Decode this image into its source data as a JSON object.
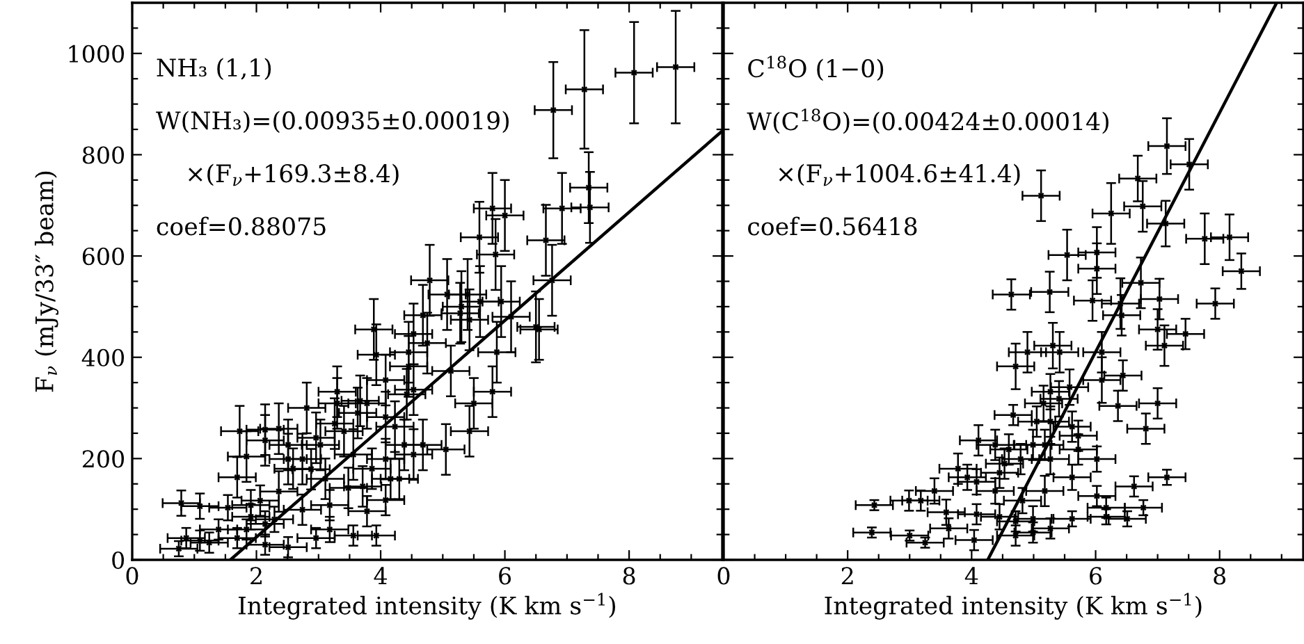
{
  "chart_data": [
    {
      "type": "scatter",
      "ylabel": "F$_{ν}$ (mJy/33″ beam)",
      "xlabel": "Integrated intensity (K km s$^{−1}$)",
      "xlim": [
        0,
        9.5
      ],
      "ylim": [
        0,
        1100
      ],
      "xticks": [
        0,
        {
          "value": 0.5,
          "label": null
        },
        {
          "value": 1,
          "label": null
        },
        {
          "value": 1.5,
          "label": null
        },
        2,
        {
          "value": 2.5,
          "label": null
        },
        {
          "value": 3,
          "label": null
        },
        {
          "value": 3.5,
          "label": null
        },
        4,
        {
          "value": 4.5,
          "label": null
        },
        {
          "value": 5,
          "label": null
        },
        {
          "value": 5.5,
          "label": null
        },
        6,
        {
          "value": 6.5,
          "label": null
        },
        {
          "value": 7,
          "label": null
        },
        {
          "value": 7.5,
          "label": null
        },
        8,
        {
          "value": 8.5,
          "label": null
        },
        {
          "value": 9,
          "label": null
        }
      ],
      "yticks": [
        0,
        {
          "value": 50,
          "label": null
        },
        {
          "value": 100,
          "label": null
        },
        {
          "value": 150,
          "label": null
        },
        200,
        {
          "value": 250,
          "label": null
        },
        {
          "value": 300,
          "label": null
        },
        {
          "value": 350,
          "label": null
        },
        400,
        {
          "value": 450,
          "label": null
        },
        {
          "value": 500,
          "label": null
        },
        {
          "value": 550,
          "label": null
        },
        600,
        {
          "value": 650,
          "label": null
        },
        {
          "value": 700,
          "label": null
        },
        {
          "value": 750,
          "label": null
        },
        800,
        {
          "value": 850,
          "label": null
        },
        {
          "value": 900,
          "label": null
        },
        {
          "value": 950,
          "label": null
        },
        1000,
        {
          "value": 1050,
          "label": null
        }
      ],
      "grid": false,
      "annotations": [
        "NH₃ (1,1)",
        "W(NH₃)=(0.00935±0.00019)",
        "×(F$_{ν}$+169.3±8.4)",
        "coef=0.88075"
      ],
      "series": [
        {
          "type": "scatter",
          "marker": "cross",
          "color": "#000000",
          "x": [
            6.78,
            7.28,
            8.08,
            8.75,
            7.35,
            6.92,
            7.37,
            6.66,
            6.76,
            5.8,
            6.0,
            5.59,
            5.85,
            4.79,
            5.07,
            5.4,
            5.94,
            6.5,
            6.1,
            5.3,
            5.6,
            3.89,
            6.55,
            3.93,
            3.3,
            3.3,
            2.36,
            1.73,
            2.14,
            4.42,
            4.75,
            5.13,
            5.8,
            5.5,
            5.87,
            5.05,
            5.43,
            4.68,
            4.23,
            3.67,
            3.56,
            2.74,
            2.51,
            1.84,
            1.69,
            0.79,
            1.09,
            1.54,
            1.91,
            2.14,
            0.87,
            1.24,
            0.75,
            1.69,
            2.14,
            2.51,
            2.96,
            3.56,
            3.93,
            3.18,
            3.78,
            4.08,
            4.16,
            4.3,
            3.48,
            3.11,
            2.88,
            2.59,
            2.36,
            2.06,
            1.91,
            2.74,
            3.18,
            3.71,
            3.86,
            4.08,
            4.38,
            4.53,
            2.96,
            3.26,
            3.63,
            3.78,
            4.08,
            4.45,
            4.53,
            4.68,
            5.28,
            5.43,
            4.45,
            4.08,
            3.41,
            3.03,
            2.51,
            2.14,
            2.81,
            4.53,
            1.39,
            1.84,
            2.29,
            1.09
          ],
          "values": [
            888,
            929,
            962,
            973,
            735,
            694,
            696,
            631,
            552,
            694,
            680,
            637,
            603,
            552,
            524,
            524,
            510,
            460,
            480,
            500,
            510,
            455,
            455,
            405,
            332,
            309,
            259,
            254,
            257,
            327,
            428,
            373,
            332,
            309,
            410,
            218,
            254,
            227,
            263,
            314,
            208,
            199,
            199,
            204,
            163,
            112,
            106,
            103,
            85,
            71,
            43,
            34,
            22,
            43,
            30,
            25,
            43,
            48,
            48,
            60,
            96,
            118,
            160,
            160,
            142,
            160,
            179,
            180,
            135,
            117,
            108,
            99,
            108,
            145,
            180,
            199,
            227,
            208,
            241,
            269,
            290,
            309,
            355,
            382,
            446,
            483,
            487,
            474,
            410,
            282,
            254,
            227,
            227,
            236,
            300,
            336,
            60,
            60,
            80,
            38
          ],
          "errors": [
            95,
            117,
            100,
            111,
            70,
            70,
            70,
            70,
            70,
            70,
            70,
            70,
            70,
            70,
            70,
            70,
            70,
            70,
            70,
            70,
            70,
            60,
            60,
            60,
            50,
            50,
            50,
            50,
            50,
            50,
            60,
            50,
            50,
            50,
            60,
            50,
            50,
            50,
            50,
            50,
            50,
            50,
            50,
            50,
            40,
            25,
            25,
            25,
            25,
            25,
            20,
            20,
            15,
            20,
            20,
            20,
            20,
            20,
            20,
            25,
            30,
            30,
            40,
            40,
            40,
            40,
            40,
            40,
            40,
            30,
            30,
            30,
            30,
            40,
            40,
            40,
            50,
            50,
            50,
            50,
            50,
            50,
            50,
            60,
            60,
            60,
            60,
            60,
            60,
            50,
            50,
            50,
            50,
            50,
            50,
            50,
            20,
            20,
            25,
            20
          ],
          "xerrors": [
            0.3,
            0.3,
            0.3,
            0.3,
            0.3,
            0.3,
            0.3,
            0.3,
            0.3,
            0.3,
            0.3,
            0.3,
            0.3,
            0.3,
            0.3,
            0.3,
            0.3,
            0.3,
            0.3,
            0.3,
            0.3,
            0.3,
            0.3,
            0.3,
            0.3,
            0.3,
            0.3,
            0.3,
            0.3,
            0.3,
            0.3,
            0.3,
            0.3,
            0.3,
            0.3,
            0.3,
            0.3,
            0.3,
            0.3,
            0.3,
            0.3,
            0.3,
            0.3,
            0.3,
            0.3,
            0.3,
            0.3,
            0.3,
            0.3,
            0.3,
            0.3,
            0.3,
            0.3,
            0.3,
            0.3,
            0.3,
            0.3,
            0.3,
            0.3,
            0.3,
            0.3,
            0.3,
            0.3,
            0.3,
            0.3,
            0.3,
            0.3,
            0.3,
            0.3,
            0.3,
            0.3,
            0.3,
            0.3,
            0.3,
            0.3,
            0.3,
            0.3,
            0.3,
            0.3,
            0.3,
            0.3,
            0.3,
            0.3,
            0.3,
            0.3,
            0.3,
            0.3,
            0.3,
            0.3,
            0.3,
            0.3,
            0.3,
            0.3,
            0.3,
            0.3,
            0.3,
            0.3,
            0.3,
            0.3,
            0.3
          ]
        },
        {
          "type": "line",
          "color": "#000000",
          "x": [
            1.58,
            9.5
          ],
          "values": [
            0,
            847
          ]
        }
      ]
    },
    {
      "type": "scatter",
      "xlabel": "Integrated intensity (K km s$^{−1}$)",
      "xlim": [
        0,
        9.35
      ],
      "ylim": [
        0,
        1100
      ],
      "tick_labels": "x",
      "xticks": [
        0,
        {
          "value": 0.5,
          "label": null
        },
        {
          "value": 1,
          "label": null
        },
        {
          "value": 1.5,
          "label": null
        },
        2,
        {
          "value": 2.5,
          "label": null
        },
        {
          "value": 3,
          "label": null
        },
        {
          "value": 3.5,
          "label": null
        },
        4,
        {
          "value": 4.5,
          "label": null
        },
        {
          "value": 5,
          "label": null
        },
        {
          "value": 5.5,
          "label": null
        },
        6,
        {
          "value": 6.5,
          "label": null
        },
        {
          "value": 7,
          "label": null
        },
        {
          "value": 7.5,
          "label": null
        },
        8,
        {
          "value": 8.5,
          "label": null
        },
        {
          "value": 9,
          "label": null
        }
      ],
      "yticks": [
        0,
        {
          "value": 50,
          "label": null
        },
        {
          "value": 100,
          "label": null
        },
        {
          "value": 150,
          "label": null
        },
        200,
        {
          "value": 250,
          "label": null
        },
        {
          "value": 300,
          "label": null
        },
        {
          "value": 350,
          "label": null
        },
        400,
        {
          "value": 450,
          "label": null
        },
        {
          "value": 500,
          "label": null
        },
        {
          "value": 550,
          "label": null
        },
        600,
        {
          "value": 650,
          "label": null
        },
        {
          "value": 700,
          "label": null
        },
        {
          "value": 750,
          "label": null
        },
        800,
        {
          "value": 850,
          "label": null
        },
        {
          "value": 900,
          "label": null
        },
        {
          "value": 950,
          "label": null
        },
        1000,
        {
          "value": 1050,
          "label": null
        }
      ],
      "grid": false,
      "annotations": [
        "C$^{18}$O (1−0)",
        "W(C$^{18}$O)=(0.00424±0.00014)",
        "×(F$_{ν}$+1004.6±41.4)",
        "coef=0.56418"
      ],
      "series": [
        {
          "type": "scatter",
          "marker": "cross",
          "color": "#000000",
          "x": [
            5.12,
            7.15,
            7.51,
            6.68,
            6.25,
            6.76,
            7.13,
            7.76,
            8.16,
            8.35,
            5.54,
            6.02,
            6.02,
            4.64,
            5.26,
            5.95,
            6.73,
            7.03,
            7.93,
            6.4,
            4.71,
            4.9,
            5.31,
            5.42,
            6.1,
            6.44,
            6.1,
            6.36,
            7.0,
            6.81,
            7.0,
            7.11,
            7.45,
            6.42,
            5.27,
            5.41,
            5.58,
            5.16,
            4.67,
            5.05,
            5.62,
            5.72,
            4.11,
            4.38,
            4.6,
            4.99,
            5.18,
            5.27,
            4.79,
            4.53,
            6.02,
            4.45,
            3.93,
            3.78,
            4.08,
            3.4,
            3.18,
            2.99,
            2.43,
            3.59,
            4.08,
            4.45,
            4.71,
            4.99,
            2.39,
            3.0,
            3.25,
            4.04,
            4.71,
            5.27,
            5.62,
            6.17,
            6.51,
            6.77,
            6.17,
            6.02,
            6.62,
            7.15,
            5.62,
            5.18,
            4.82,
            4.38,
            4.99,
            3.63,
            5.72,
            5.27
          ],
          "values": [
            719,
            817,
            781,
            753,
            684,
            698,
            664,
            634,
            637,
            570,
            602,
            607,
            575,
            524,
            529,
            512,
            547,
            515,
            506,
            506,
            382,
            410,
            423,
            410,
            410,
            364,
            355,
            304,
            309,
            259,
            455,
            423,
            446,
            483,
            332,
            318,
            341,
            309,
            286,
            273,
            263,
            245,
            236,
            227,
            218,
            227,
            227,
            199,
            199,
            190,
            199,
            172,
            163,
            180,
            154,
            136,
            117,
            117,
            108,
            94,
            90,
            85,
            76,
            81,
            54,
            48,
            34,
            39,
            48,
            62,
            81,
            85,
            81,
            103,
            103,
            126,
            145,
            163,
            163,
            136,
            117,
            136,
            54,
            62,
            218,
            273
          ],
          "errors": [
            50,
            55,
            50,
            45,
            60,
            50,
            45,
            50,
            45,
            35,
            50,
            50,
            50,
            30,
            40,
            40,
            50,
            40,
            30,
            50,
            45,
            40,
            45,
            40,
            40,
            30,
            45,
            30,
            30,
            30,
            40,
            40,
            30,
            40,
            35,
            35,
            35,
            35,
            20,
            30,
            30,
            30,
            30,
            30,
            30,
            30,
            30,
            30,
            30,
            30,
            25,
            30,
            25,
            30,
            25,
            25,
            20,
            20,
            10,
            25,
            20,
            25,
            20,
            25,
            10,
            10,
            10,
            20,
            20,
            20,
            15,
            15,
            15,
            15,
            20,
            20,
            20,
            15,
            25,
            30,
            25,
            25,
            20,
            20,
            30,
            30
          ],
          "xerrors": [
            0.3,
            0.3,
            0.3,
            0.3,
            0.3,
            0.3,
            0.3,
            0.3,
            0.3,
            0.3,
            0.3,
            0.3,
            0.3,
            0.3,
            0.3,
            0.3,
            0.3,
            0.3,
            0.3,
            0.3,
            0.3,
            0.3,
            0.3,
            0.3,
            0.3,
            0.3,
            0.3,
            0.3,
            0.3,
            0.3,
            0.3,
            0.3,
            0.3,
            0.3,
            0.3,
            0.3,
            0.3,
            0.3,
            0.3,
            0.3,
            0.3,
            0.3,
            0.3,
            0.3,
            0.3,
            0.3,
            0.3,
            0.3,
            0.3,
            0.3,
            0.3,
            0.3,
            0.3,
            0.3,
            0.3,
            0.3,
            0.3,
            0.3,
            0.3,
            0.3,
            0.3,
            0.3,
            0.3,
            0.3,
            0.3,
            0.3,
            0.3,
            0.3,
            0.3,
            0.3,
            0.3,
            0.3,
            0.3,
            0.3,
            0.3,
            0.3,
            0.3,
            0.3,
            0.3,
            0.3,
            0.3,
            0.3,
            0.3,
            0.3,
            0.3,
            0.3
          ]
        },
        {
          "type": "line",
          "color": "#000000",
          "x": [
            4.26,
            8.92
          ],
          "values": [
            0,
            1100
          ]
        }
      ]
    }
  ]
}
